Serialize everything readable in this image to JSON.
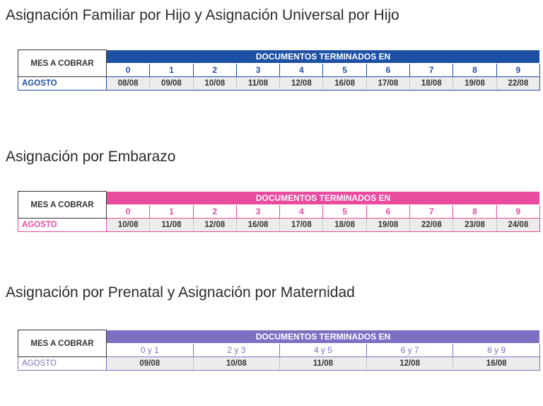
{
  "sections": [
    {
      "title": "Asignación Familiar por Hijo y Asignación Universal por Hijo",
      "color": "#1d4fa3",
      "mes_header": "MES A COBRAR",
      "doc_header": "DOCUMENTOS TERMINADOS EN",
      "digits": [
        "0",
        "1",
        "2",
        "3",
        "4",
        "5",
        "6",
        "7",
        "8",
        "9"
      ],
      "month": "AGOSTO",
      "dates": [
        "08/08",
        "09/08",
        "10/08",
        "11/08",
        "12/08",
        "16/08",
        "17/08",
        "18/08",
        "19/08",
        "22/08"
      ]
    },
    {
      "title": "Asignación por Embarazo",
      "color": "#e94b9f",
      "mes_header": "MES A COBRAR",
      "doc_header": "DOCUMENTOS TERMINADOS EN",
      "digits": [
        "0",
        "1",
        "2",
        "3",
        "4",
        "5",
        "6",
        "7",
        "8",
        "9"
      ],
      "month": "AGOSTO",
      "dates": [
        "10/08",
        "11/08",
        "12/08",
        "16/08",
        "17/08",
        "18/08",
        "19/08",
        "22/08",
        "23/08",
        "24/08"
      ]
    },
    {
      "title": "Asignación por Prenatal y Asignación por Maternidad",
      "color": "#7f6fc2",
      "mes_header": "MES A COBRAR",
      "doc_header": "DOCUMENTOS TERMINADOS EN",
      "digits": [
        "0 y 1",
        "2 y 3",
        "4 y 5",
        "6 y 7",
        "8 y 9"
      ],
      "month": "AGOSTO",
      "dates": [
        "09/08",
        "10/08",
        "11/08",
        "12/08",
        "16/08"
      ]
    }
  ]
}
